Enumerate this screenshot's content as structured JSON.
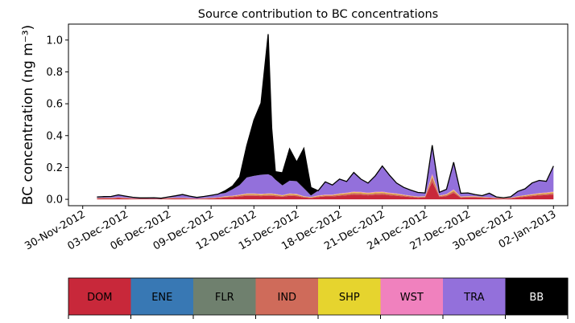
{
  "chart_data": {
    "type": "area",
    "title": "Source contribution to BC concentrations",
    "ylabel": "BC concentration (ng m⁻³)",
    "xlabel": "",
    "ylim": [
      -0.04,
      1.1
    ],
    "yticks": [
      0.0,
      0.2,
      0.4,
      0.6,
      0.8,
      1.0
    ],
    "ytick_labels": [
      "0.0",
      "0.2",
      "0.4",
      "0.6",
      "0.8",
      "1.0"
    ],
    "xlim": [
      "2012-11-29",
      "2013-01-03"
    ],
    "xticks": [
      "2012-11-30",
      "2012-12-03",
      "2012-12-06",
      "2012-12-09",
      "2012-12-12",
      "2012-12-15",
      "2012-12-18",
      "2012-12-21",
      "2012-12-24",
      "2012-12-27",
      "2012-12-30",
      "2013-01-02"
    ],
    "xtick_labels": [
      "30-Nov-2012",
      "03-Dec-2012",
      "06-Dec-2012",
      "09-Dec-2012",
      "12-Dec-2012",
      "15-Dec-2012",
      "18-Dec-2012",
      "21-Dec-2012",
      "24-Dec-2012",
      "27-Dec-2012",
      "30-Dec-2012",
      "02-Jan-2013"
    ],
    "grid": false,
    "stacked": true,
    "x": [
      "2012-12-01 00:00",
      "2012-12-01 12:00",
      "2012-12-02 00:00",
      "2012-12-02 12:00",
      "2012-12-03 00:00",
      "2012-12-03 12:00",
      "2012-12-04 00:00",
      "2012-12-04 12:00",
      "2012-12-05 00:00",
      "2012-12-05 12:00",
      "2012-12-06 00:00",
      "2012-12-06 12:00",
      "2012-12-07 00:00",
      "2012-12-07 12:00",
      "2012-12-08 00:00",
      "2012-12-08 12:00",
      "2012-12-09 00:00",
      "2012-12-09 12:00",
      "2012-12-10 00:00",
      "2012-12-10 12:00",
      "2012-12-11 00:00",
      "2012-12-11 12:00",
      "2012-12-12 00:00",
      "2012-12-12 12:00",
      "2012-12-13 00:00",
      "2012-12-13 06:00",
      "2012-12-13 12:00",
      "2012-12-14 00:00",
      "2012-12-14 12:00",
      "2012-12-15 00:00",
      "2012-12-15 12:00",
      "2012-12-16 00:00",
      "2012-12-16 12:00",
      "2012-12-17 00:00",
      "2012-12-17 12:00",
      "2012-12-18 00:00",
      "2012-12-18 12:00",
      "2012-12-19 00:00",
      "2012-12-19 12:00",
      "2012-12-20 00:00",
      "2012-12-20 12:00",
      "2012-12-21 00:00",
      "2012-12-21 12:00",
      "2012-12-22 00:00",
      "2012-12-22 12:00",
      "2012-12-23 00:00",
      "2012-12-23 12:00",
      "2012-12-24 00:00",
      "2012-12-24 12:00",
      "2012-12-25 00:00",
      "2012-12-25 12:00",
      "2012-12-26 00:00",
      "2012-12-26 12:00",
      "2012-12-27 00:00",
      "2012-12-27 12:00",
      "2012-12-28 00:00",
      "2012-12-28 12:00",
      "2012-12-29 00:00",
      "2012-12-29 12:00",
      "2012-12-30 00:00",
      "2012-12-30 12:00",
      "2012-12-31 00:00",
      "2012-12-31 12:00",
      "2013-01-01 00:00",
      "2013-01-01 12:00",
      "2013-01-02 00:00"
    ],
    "series": [
      {
        "name": "DOM",
        "color": "#c8283a",
        "values": [
          0.005,
          0.006,
          0.006,
          0.008,
          0.006,
          0.004,
          0.004,
          0.004,
          0.004,
          0.003,
          0.005,
          0.006,
          0.006,
          0.004,
          0.003,
          0.004,
          0.006,
          0.008,
          0.012,
          0.014,
          0.018,
          0.022,
          0.022,
          0.02,
          0.022,
          0.022,
          0.02,
          0.016,
          0.022,
          0.02,
          0.012,
          0.008,
          0.014,
          0.018,
          0.018,
          0.022,
          0.025,
          0.03,
          0.028,
          0.025,
          0.028,
          0.03,
          0.025,
          0.022,
          0.018,
          0.014,
          0.01,
          0.012,
          0.11,
          0.015,
          0.02,
          0.04,
          0.01,
          0.012,
          0.012,
          0.01,
          0.008,
          0.006,
          0.004,
          0.006,
          0.012,
          0.016,
          0.02,
          0.024,
          0.026,
          0.03
        ]
      },
      {
        "name": "ENE",
        "color": "#3878b4",
        "values": [
          0.0,
          0.0,
          0.0,
          0.0,
          0.0,
          0.0,
          0.0,
          0.0,
          0.0,
          0.0,
          0.0,
          0.0,
          0.0,
          0.0,
          0.0,
          0.0,
          0.0,
          0.0,
          0.0,
          0.0,
          0.0,
          0.0,
          0.0,
          0.0,
          0.0,
          0.0,
          0.0,
          0.0,
          0.0,
          0.0,
          0.0,
          0.0,
          0.0,
          0.0,
          0.0,
          0.0,
          0.0,
          0.0,
          0.0,
          0.0,
          0.0,
          0.0,
          0.0,
          0.0,
          0.0,
          0.0,
          0.0,
          0.0,
          0.0,
          0.0,
          0.0,
          0.0,
          0.0,
          0.0,
          0.0,
          0.0,
          0.0,
          0.0,
          0.0,
          0.0,
          0.0,
          0.0,
          0.0,
          0.0,
          0.0,
          0.0
        ]
      },
      {
        "name": "FLR",
        "color": "#6f806e",
        "values": [
          0.0,
          0.0,
          0.0,
          0.0,
          0.0,
          0.0,
          0.0,
          0.0,
          0.0,
          0.0,
          0.0,
          0.0,
          0.0,
          0.0,
          0.0,
          0.0,
          0.0,
          0.0,
          0.0,
          0.0,
          0.0,
          0.0,
          0.0,
          0.0,
          0.0,
          0.0,
          0.0,
          0.0,
          0.0,
          0.0,
          0.0,
          0.0,
          0.0,
          0.0,
          0.0,
          0.0,
          0.0,
          0.0,
          0.0,
          0.0,
          0.0,
          0.0,
          0.0,
          0.0,
          0.0,
          0.0,
          0.0,
          0.0,
          0.0,
          0.0,
          0.0,
          0.0,
          0.0,
          0.0,
          0.0,
          0.0,
          0.0,
          0.0,
          0.0,
          0.0,
          0.0,
          0.0,
          0.0,
          0.0,
          0.0,
          0.0
        ]
      },
      {
        "name": "IND",
        "color": "#cf6b5a",
        "values": [
          0.002,
          0.002,
          0.002,
          0.003,
          0.002,
          0.002,
          0.001,
          0.001,
          0.001,
          0.001,
          0.002,
          0.002,
          0.002,
          0.002,
          0.001,
          0.002,
          0.002,
          0.003,
          0.004,
          0.005,
          0.006,
          0.008,
          0.008,
          0.007,
          0.008,
          0.008,
          0.007,
          0.006,
          0.008,
          0.007,
          0.004,
          0.003,
          0.005,
          0.006,
          0.006,
          0.008,
          0.009,
          0.01,
          0.01,
          0.009,
          0.01,
          0.01,
          0.009,
          0.008,
          0.006,
          0.005,
          0.004,
          0.004,
          0.03,
          0.005,
          0.007,
          0.012,
          0.004,
          0.004,
          0.004,
          0.003,
          0.003,
          0.002,
          0.002,
          0.002,
          0.004,
          0.005,
          0.007,
          0.008,
          0.009,
          0.01
        ]
      },
      {
        "name": "SHP",
        "color": "#e6d42e",
        "values": [
          0.001,
          0.001,
          0.001,
          0.001,
          0.001,
          0.001,
          0.0,
          0.0,
          0.0,
          0.0,
          0.001,
          0.001,
          0.001,
          0.001,
          0.0,
          0.001,
          0.001,
          0.001,
          0.002,
          0.002,
          0.003,
          0.004,
          0.004,
          0.004,
          0.004,
          0.004,
          0.004,
          0.003,
          0.004,
          0.004,
          0.002,
          0.002,
          0.003,
          0.003,
          0.003,
          0.004,
          0.004,
          0.005,
          0.005,
          0.004,
          0.005,
          0.005,
          0.004,
          0.004,
          0.003,
          0.002,
          0.002,
          0.002,
          0.01,
          0.002,
          0.003,
          0.006,
          0.002,
          0.002,
          0.002,
          0.002,
          0.001,
          0.001,
          0.001,
          0.001,
          0.002,
          0.003,
          0.003,
          0.004,
          0.004,
          0.005
        ]
      },
      {
        "name": "WST",
        "color": "#f081be",
        "values": [
          0.001,
          0.001,
          0.001,
          0.001,
          0.001,
          0.001,
          0.0,
          0.0,
          0.0,
          0.0,
          0.001,
          0.001,
          0.001,
          0.001,
          0.0,
          0.001,
          0.001,
          0.001,
          0.002,
          0.002,
          0.003,
          0.003,
          0.003,
          0.003,
          0.003,
          0.003,
          0.003,
          0.002,
          0.003,
          0.003,
          0.002,
          0.001,
          0.002,
          0.003,
          0.003,
          0.003,
          0.004,
          0.004,
          0.004,
          0.004,
          0.004,
          0.004,
          0.004,
          0.003,
          0.003,
          0.002,
          0.002,
          0.002,
          0.01,
          0.002,
          0.003,
          0.005,
          0.002,
          0.002,
          0.002,
          0.001,
          0.001,
          0.001,
          0.001,
          0.001,
          0.002,
          0.002,
          0.003,
          0.003,
          0.004,
          0.004
        ]
      },
      {
        "name": "TRA",
        "color": "#9370db",
        "values": [
          0.006,
          0.007,
          0.008,
          0.015,
          0.01,
          0.005,
          0.004,
          0.004,
          0.005,
          0.003,
          0.006,
          0.012,
          0.02,
          0.012,
          0.008,
          0.01,
          0.015,
          0.02,
          0.02,
          0.04,
          0.06,
          0.1,
          0.11,
          0.12,
          0.12,
          0.11,
          0.09,
          0.06,
          0.08,
          0.08,
          0.05,
          0.01,
          0.03,
          0.08,
          0.06,
          0.09,
          0.07,
          0.12,
          0.08,
          0.06,
          0.1,
          0.16,
          0.11,
          0.065,
          0.045,
          0.035,
          0.025,
          0.02,
          0.18,
          0.02,
          0.03,
          0.17,
          0.02,
          0.02,
          0.01,
          0.007,
          0.025,
          0.005,
          0.002,
          0.006,
          0.03,
          0.04,
          0.07,
          0.08,
          0.07,
          0.16
        ]
      },
      {
        "name": "BB",
        "color": "#000000",
        "values": [
          0.0,
          0.0,
          0.0,
          0.0,
          0.0,
          0.0,
          0.0,
          0.0,
          0.0,
          0.0,
          0.0,
          0.0,
          0.0,
          0.0,
          0.0,
          0.0,
          0.0,
          0.0,
          0.015,
          0.02,
          0.05,
          0.2,
          0.35,
          0.45,
          0.88,
          0.3,
          0.05,
          0.08,
          0.2,
          0.12,
          0.25,
          0.05,
          0.0,
          0.0,
          0.0,
          0.0,
          0.0,
          0.0,
          0.0,
          0.0,
          0.0,
          0.0,
          0.0,
          0.0,
          0.0,
          0.0,
          0.0,
          0.0,
          0.0,
          0.0,
          0.0,
          0.0,
          0.0,
          0.0,
          0.0,
          0.0,
          0.0,
          0.0,
          0.0,
          0.0,
          0.0,
          0.0,
          0.0,
          0.0,
          0.0,
          0.0
        ]
      }
    ],
    "legend": {
      "placement": "bottom",
      "entries": [
        {
          "label": "DOM",
          "color": "#c8283a",
          "text_color": "#000000"
        },
        {
          "label": "ENE",
          "color": "#3878b4",
          "text_color": "#000000"
        },
        {
          "label": "FLR",
          "color": "#6f806e",
          "text_color": "#000000"
        },
        {
          "label": "IND",
          "color": "#cf6b5a",
          "text_color": "#000000"
        },
        {
          "label": "SHP",
          "color": "#e6d42e",
          "text_color": "#000000"
        },
        {
          "label": "WST",
          "color": "#f081be",
          "text_color": "#000000"
        },
        {
          "label": "TRA",
          "color": "#9370db",
          "text_color": "#000000"
        },
        {
          "label": "BB",
          "color": "#000000",
          "text_color": "#ffffff"
        }
      ]
    }
  }
}
